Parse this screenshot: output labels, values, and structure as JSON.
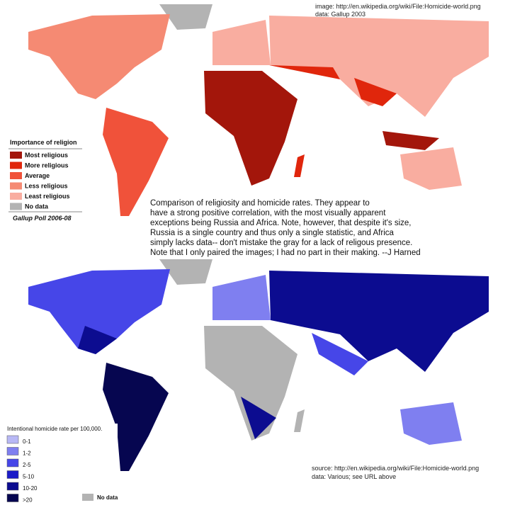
{
  "top_credit": [
    "image: http://en.wikipedia.org/wiki/File:Homicide-world.png",
    "data: Gallup 2003"
  ],
  "religion_legend": {
    "title": "Importance of religion",
    "items": [
      {
        "label": "Most religious",
        "color": "#a3160b"
      },
      {
        "label": "More religious",
        "color": "#e0260c"
      },
      {
        "label": "Average",
        "color": "#f0523a"
      },
      {
        "label": "Less religious",
        "color": "#f58a73"
      },
      {
        "label": "Least religious",
        "color": "#f9ada0"
      },
      {
        "label": "No data",
        "color": "#b3b3b3"
      }
    ],
    "footer": "Gallup Poll 2006-08"
  },
  "caption": [
    "Comparison of religiosity and homicide rates. They appear to",
    "have a strong positive correlation, with the most visually apparent",
    "exceptions being Russia and Africa. Note, however, that despite it's size,",
    "Russia is a single country and thus only a single statistic, and Africa",
    "simply lacks data-- don't mistake the gray for a lack of religous presence.",
    "Note that I only paired the images; I had no part in their making. --J Harned"
  ],
  "homicide_legend": {
    "title": "Intentional homicide rate per 100,000.",
    "items": [
      {
        "label": "0-1",
        "color": "#b8b8f5"
      },
      {
        "label": "1-2",
        "color": "#7f7ff0"
      },
      {
        "label": "2-5",
        "color": "#4646e8"
      },
      {
        "label": "5-10",
        "color": "#1c1cc8"
      },
      {
        "label": "10-20",
        "color": "#0c0c90"
      },
      {
        "label": ">20",
        "color": "#060650"
      }
    ],
    "no_data": {
      "label": "No data",
      "color": "#b3b3b3"
    }
  },
  "bottom_credit": [
    "source: http://en.wikipedia.org/wiki/File:Homicide-world.png",
    "data: Various; see URL above"
  ]
}
